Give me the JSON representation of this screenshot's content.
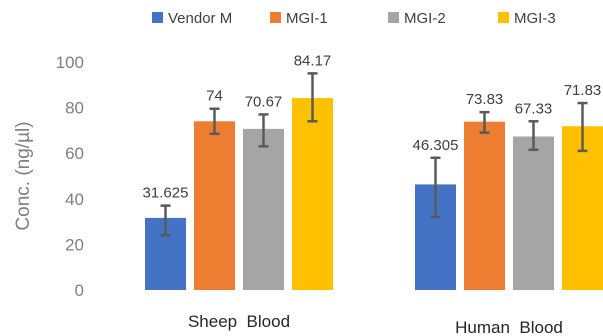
{
  "chart_data": {
    "type": "bar",
    "title": "",
    "xlabel": "",
    "ylabel": "Conc. (ng/µl)",
    "ylim": [
      0,
      100
    ],
    "yticks": [
      0,
      20,
      40,
      60,
      80,
      100
    ],
    "grid": false,
    "legend_position": "top",
    "categories": [
      "Sheep  Blood",
      "Human  Blood"
    ],
    "series": [
      {
        "name": "Vendor M",
        "color": "#4472c4",
        "values": [
          31.625,
          46.305
        ],
        "labels": [
          "31.625",
          "46.305"
        ],
        "err_low": [
          24,
          32
        ],
        "err_high": [
          37,
          58
        ]
      },
      {
        "name": "MGI-1",
        "color": "#ed7d31",
        "values": [
          74,
          73.83
        ],
        "labels": [
          "74",
          "73.83"
        ],
        "err_low": [
          68.5,
          69
        ],
        "err_high": [
          79.5,
          78
        ]
      },
      {
        "name": "MGI-2",
        "color": "#a5a5a5",
        "values": [
          70.67,
          67.33
        ],
        "labels": [
          "70.67",
          "67.33"
        ],
        "err_low": [
          63,
          61.5
        ],
        "err_high": [
          77,
          74
        ]
      },
      {
        "name": "MGI-3",
        "color": "#ffc000",
        "values": [
          84.17,
          71.83
        ],
        "labels": [
          "84.17",
          "71.83"
        ],
        "err_low": [
          74,
          61
        ],
        "err_high": [
          95,
          82
        ]
      }
    ]
  }
}
